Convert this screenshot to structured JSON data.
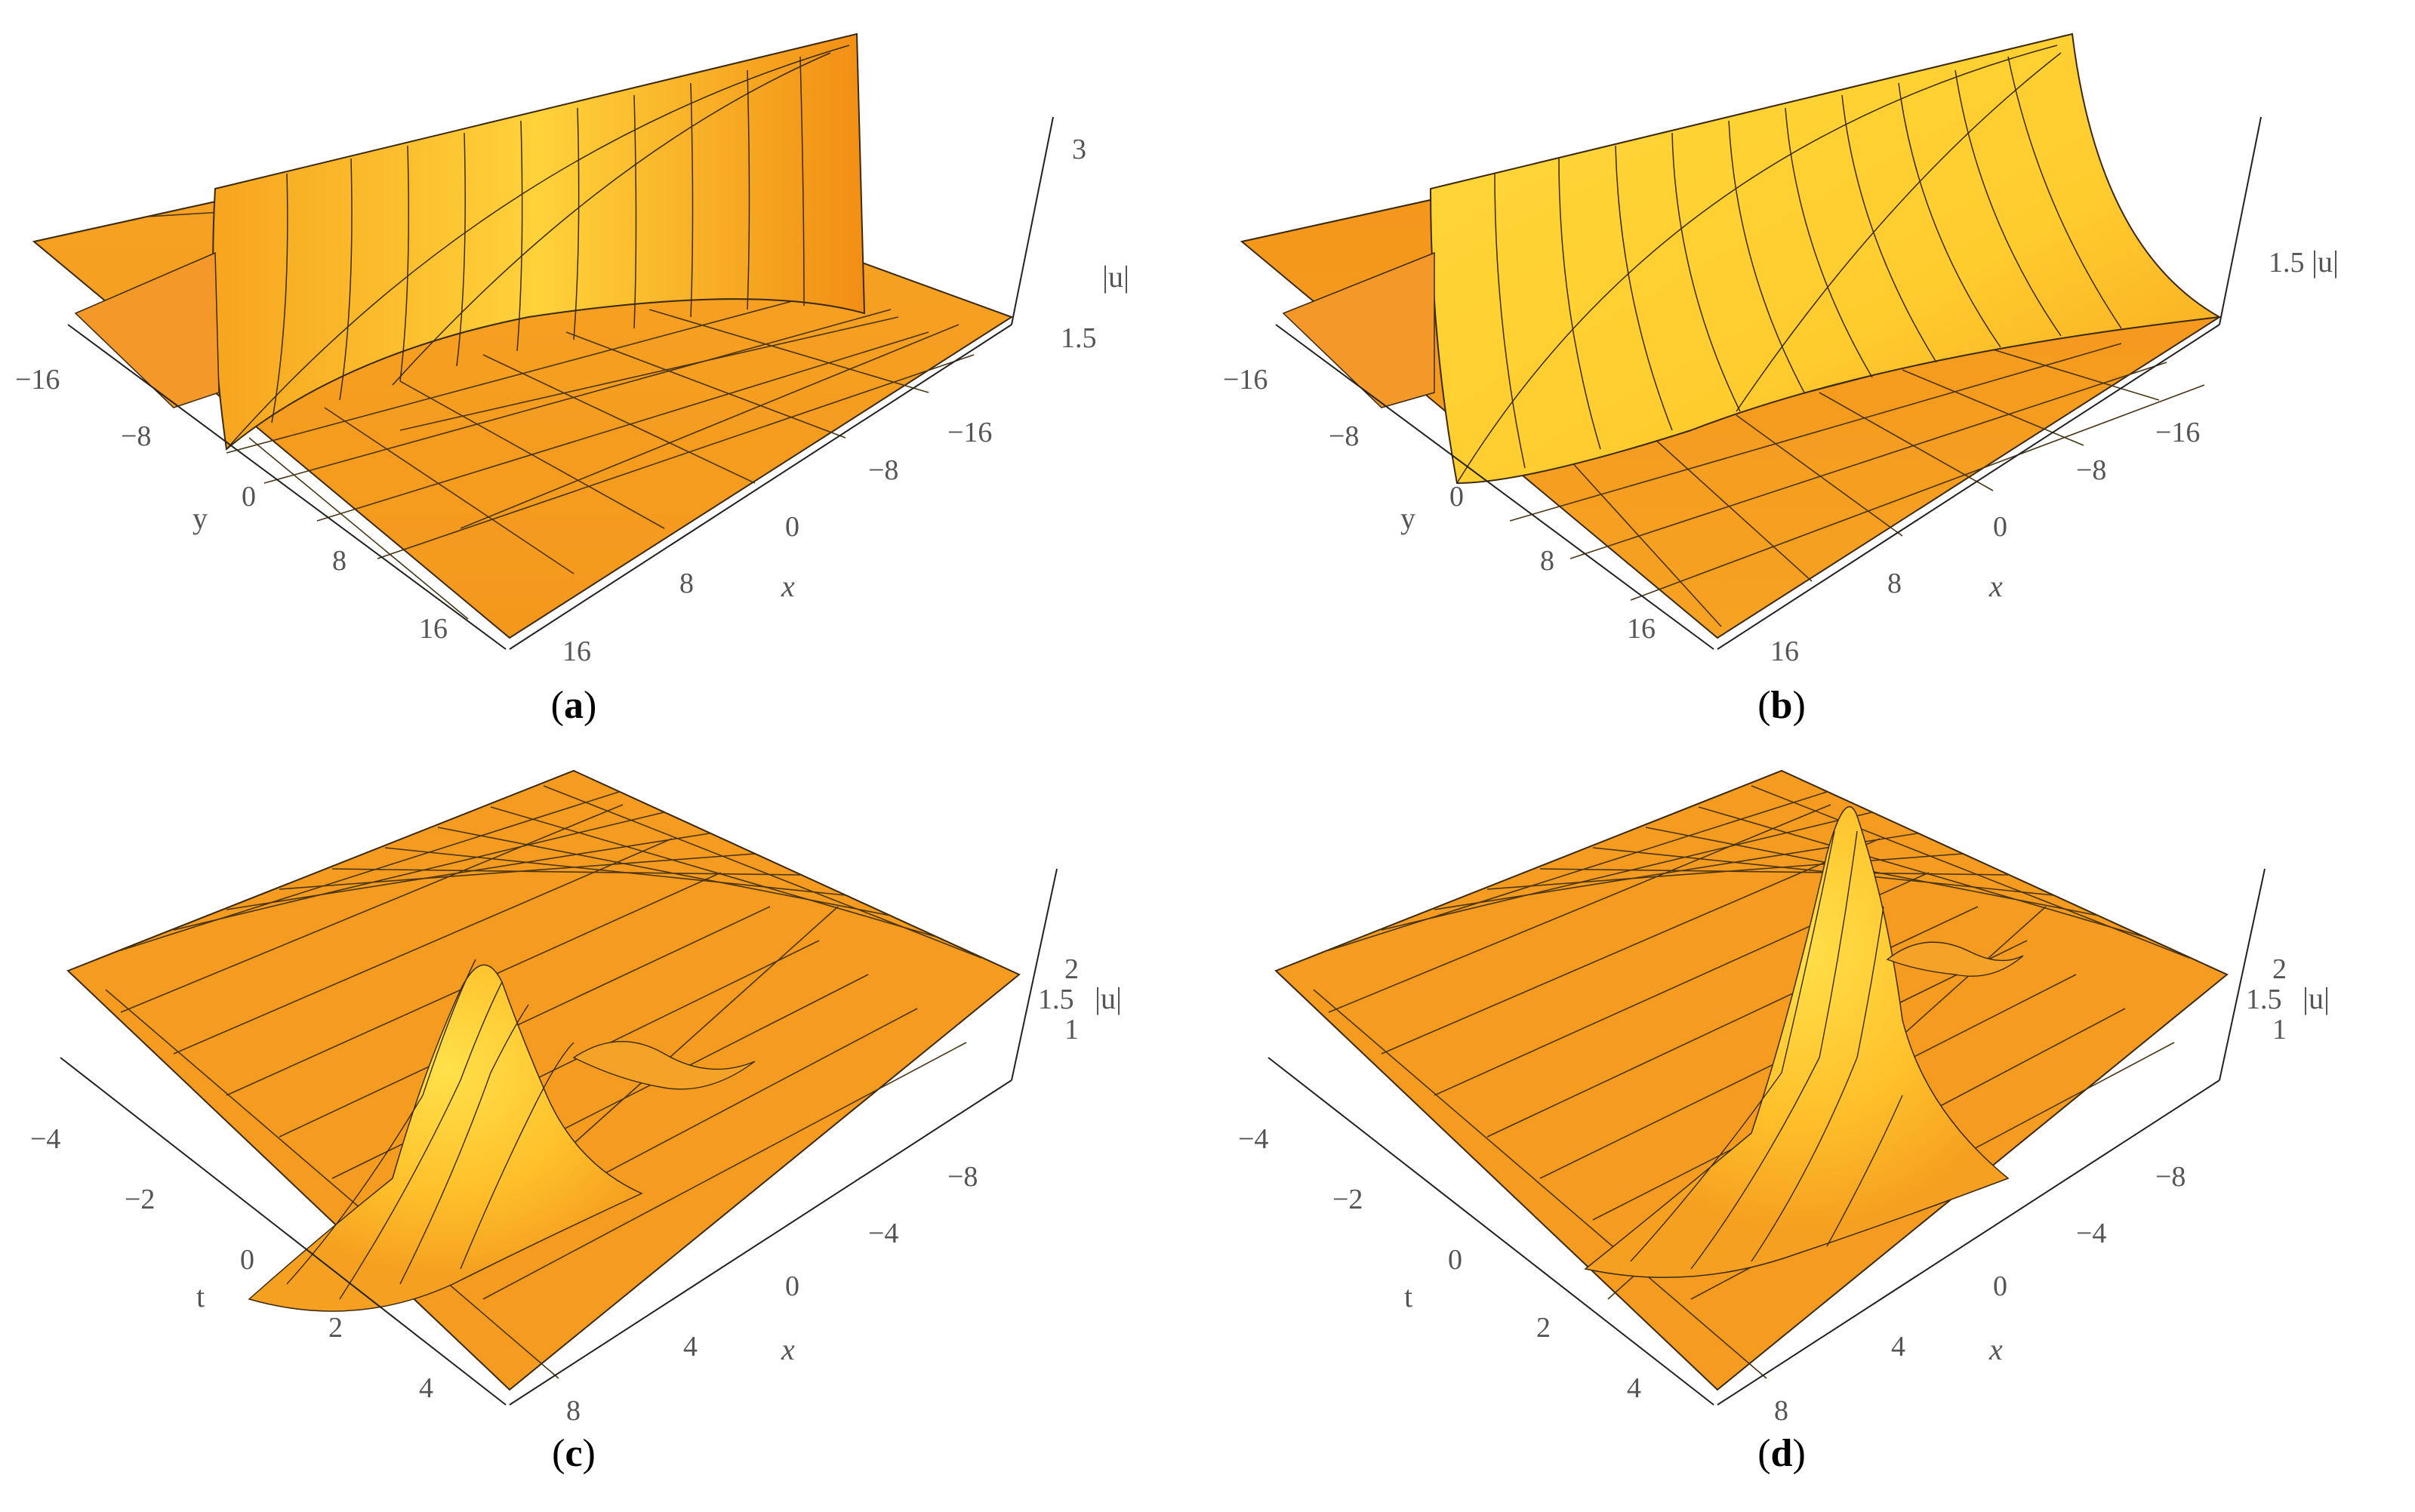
{
  "chart_data": [
    {
      "type": "surface3d",
      "panel": "a",
      "caption_letter": "a",
      "shape": "line soliton",
      "x_axis": {
        "label": "x",
        "ticks": [
          "16",
          "8",
          "0",
          "−8",
          "−16"
        ],
        "range": [
          -20,
          20
        ]
      },
      "y_axis": {
        "label": "y",
        "ticks": [
          "−16",
          "−8",
          "0",
          "8",
          "16"
        ],
        "range": [
          -20,
          20
        ]
      },
      "z_axis": {
        "label": "|u|",
        "ticks": [
          "1.5",
          "3"
        ]
      },
      "background": 1.0,
      "peak": 3.1,
      "color": "#f5a11f"
    },
    {
      "type": "surface3d",
      "panel": "b",
      "caption_letter": "b",
      "shape": "line soliton",
      "x_axis": {
        "label": "x",
        "ticks": [
          "16",
          "8",
          "0",
          "−8",
          "−16"
        ],
        "range": [
          -20,
          20
        ]
      },
      "y_axis": {
        "label": "y",
        "ticks": [
          "−16",
          "−8",
          "0",
          "8",
          "16"
        ],
        "range": [
          -20,
          20
        ]
      },
      "z_axis": {
        "label": "|u|",
        "ticks": [
          "1.5"
        ]
      },
      "background": 1.0,
      "peak": 1.85,
      "color": "#f5a11f"
    },
    {
      "type": "surface3d",
      "panel": "c",
      "caption_letter": "c",
      "shape": "localized wave",
      "x_axis": {
        "label": "x",
        "ticks": [
          "8",
          "4",
          "0",
          "−4",
          "−8"
        ],
        "range": [
          -10,
          10
        ]
      },
      "y_axis": {
        "label": "t",
        "ticks": [
          "−4",
          "−2",
          "0",
          "2",
          "4"
        ],
        "range": [
          -5,
          5
        ]
      },
      "z_axis": {
        "label": "|u|",
        "ticks": [
          "1",
          "1.5",
          "2"
        ]
      },
      "background": 1.0,
      "peak": 2.3,
      "color": "#f5a11f"
    },
    {
      "type": "surface3d",
      "panel": "d",
      "caption_letter": "d",
      "shape": "localized wave",
      "x_axis": {
        "label": "x",
        "ticks": [
          "8",
          "4",
          "0",
          "−4",
          "−8"
        ],
        "range": [
          -10,
          10
        ]
      },
      "y_axis": {
        "label": "t",
        "ticks": [
          "−4",
          "−2",
          "0",
          "2",
          "4"
        ],
        "range": [
          -5,
          5
        ]
      },
      "z_axis": {
        "label": "|u|",
        "ticks": [
          "1",
          "1.5",
          "2"
        ]
      },
      "background": 1.0,
      "peak": 2.3,
      "color": "#f5a11f"
    }
  ]
}
